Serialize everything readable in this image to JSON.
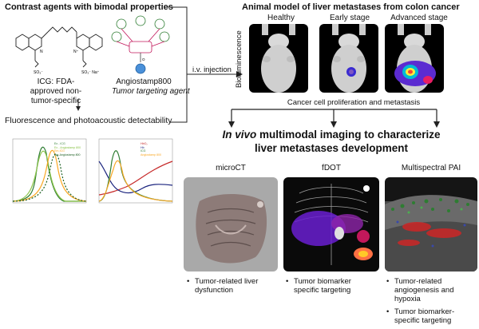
{
  "left": {
    "title": "Contrast agents with bimodal properties",
    "icg_label_1": "ICG: FDA-",
    "icg_label_2": "approved non-",
    "icg_label_3": "tumor-specific",
    "angio_name": "Angiostamp800",
    "angio_desc": "Tumor targeting agent",
    "detect_label": "Fluorescence and photoacoustic detectability",
    "injection": "i.v. injection",
    "chart1_legend": [
      "Ex - ICG",
      "Ex - Angiostamp 800",
      "Em-ICG",
      "Em-Angiostamp 800"
    ],
    "chart2_legend": [
      "HbO₂",
      "Hb",
      "ICG",
      "Angiostamp 800"
    ]
  },
  "model": {
    "title": "Animal model of liver metastases from colon cancer",
    "stages": [
      "Healthy",
      "Early stage",
      "Advanced stage"
    ],
    "side_label": "Bioluminescence",
    "process": "Cancer cell proliferation and metastasis"
  },
  "heading": {
    "line1_italic": "In vivo",
    "line1_rest": " multimodal imaging to characterize",
    "line2": "liver metastases development"
  },
  "modalities": [
    {
      "name": "microCT",
      "bullets": [
        "Tumor-related liver",
        "dysfunction"
      ]
    },
    {
      "name": "fDOT",
      "bullets": [
        "Tumor biomarker",
        "specific targeting"
      ]
    },
    {
      "name": "Multispectral PAI",
      "bullets": [
        "Tumor-related",
        "angiogenesis and",
        "hypoxia",
        "Tumor biomarker-",
        "specific targeting"
      ]
    }
  ],
  "colors": {
    "ex_icg": "#2e7d32",
    "ex_angio": "#8bc34a",
    "em_icg": "#f9a825",
    "em_angio": "#1b5e20",
    "hbo2": "#c62828",
    "hb": "#1a237e",
    "luc_blue": "#3a2bd1"
  }
}
